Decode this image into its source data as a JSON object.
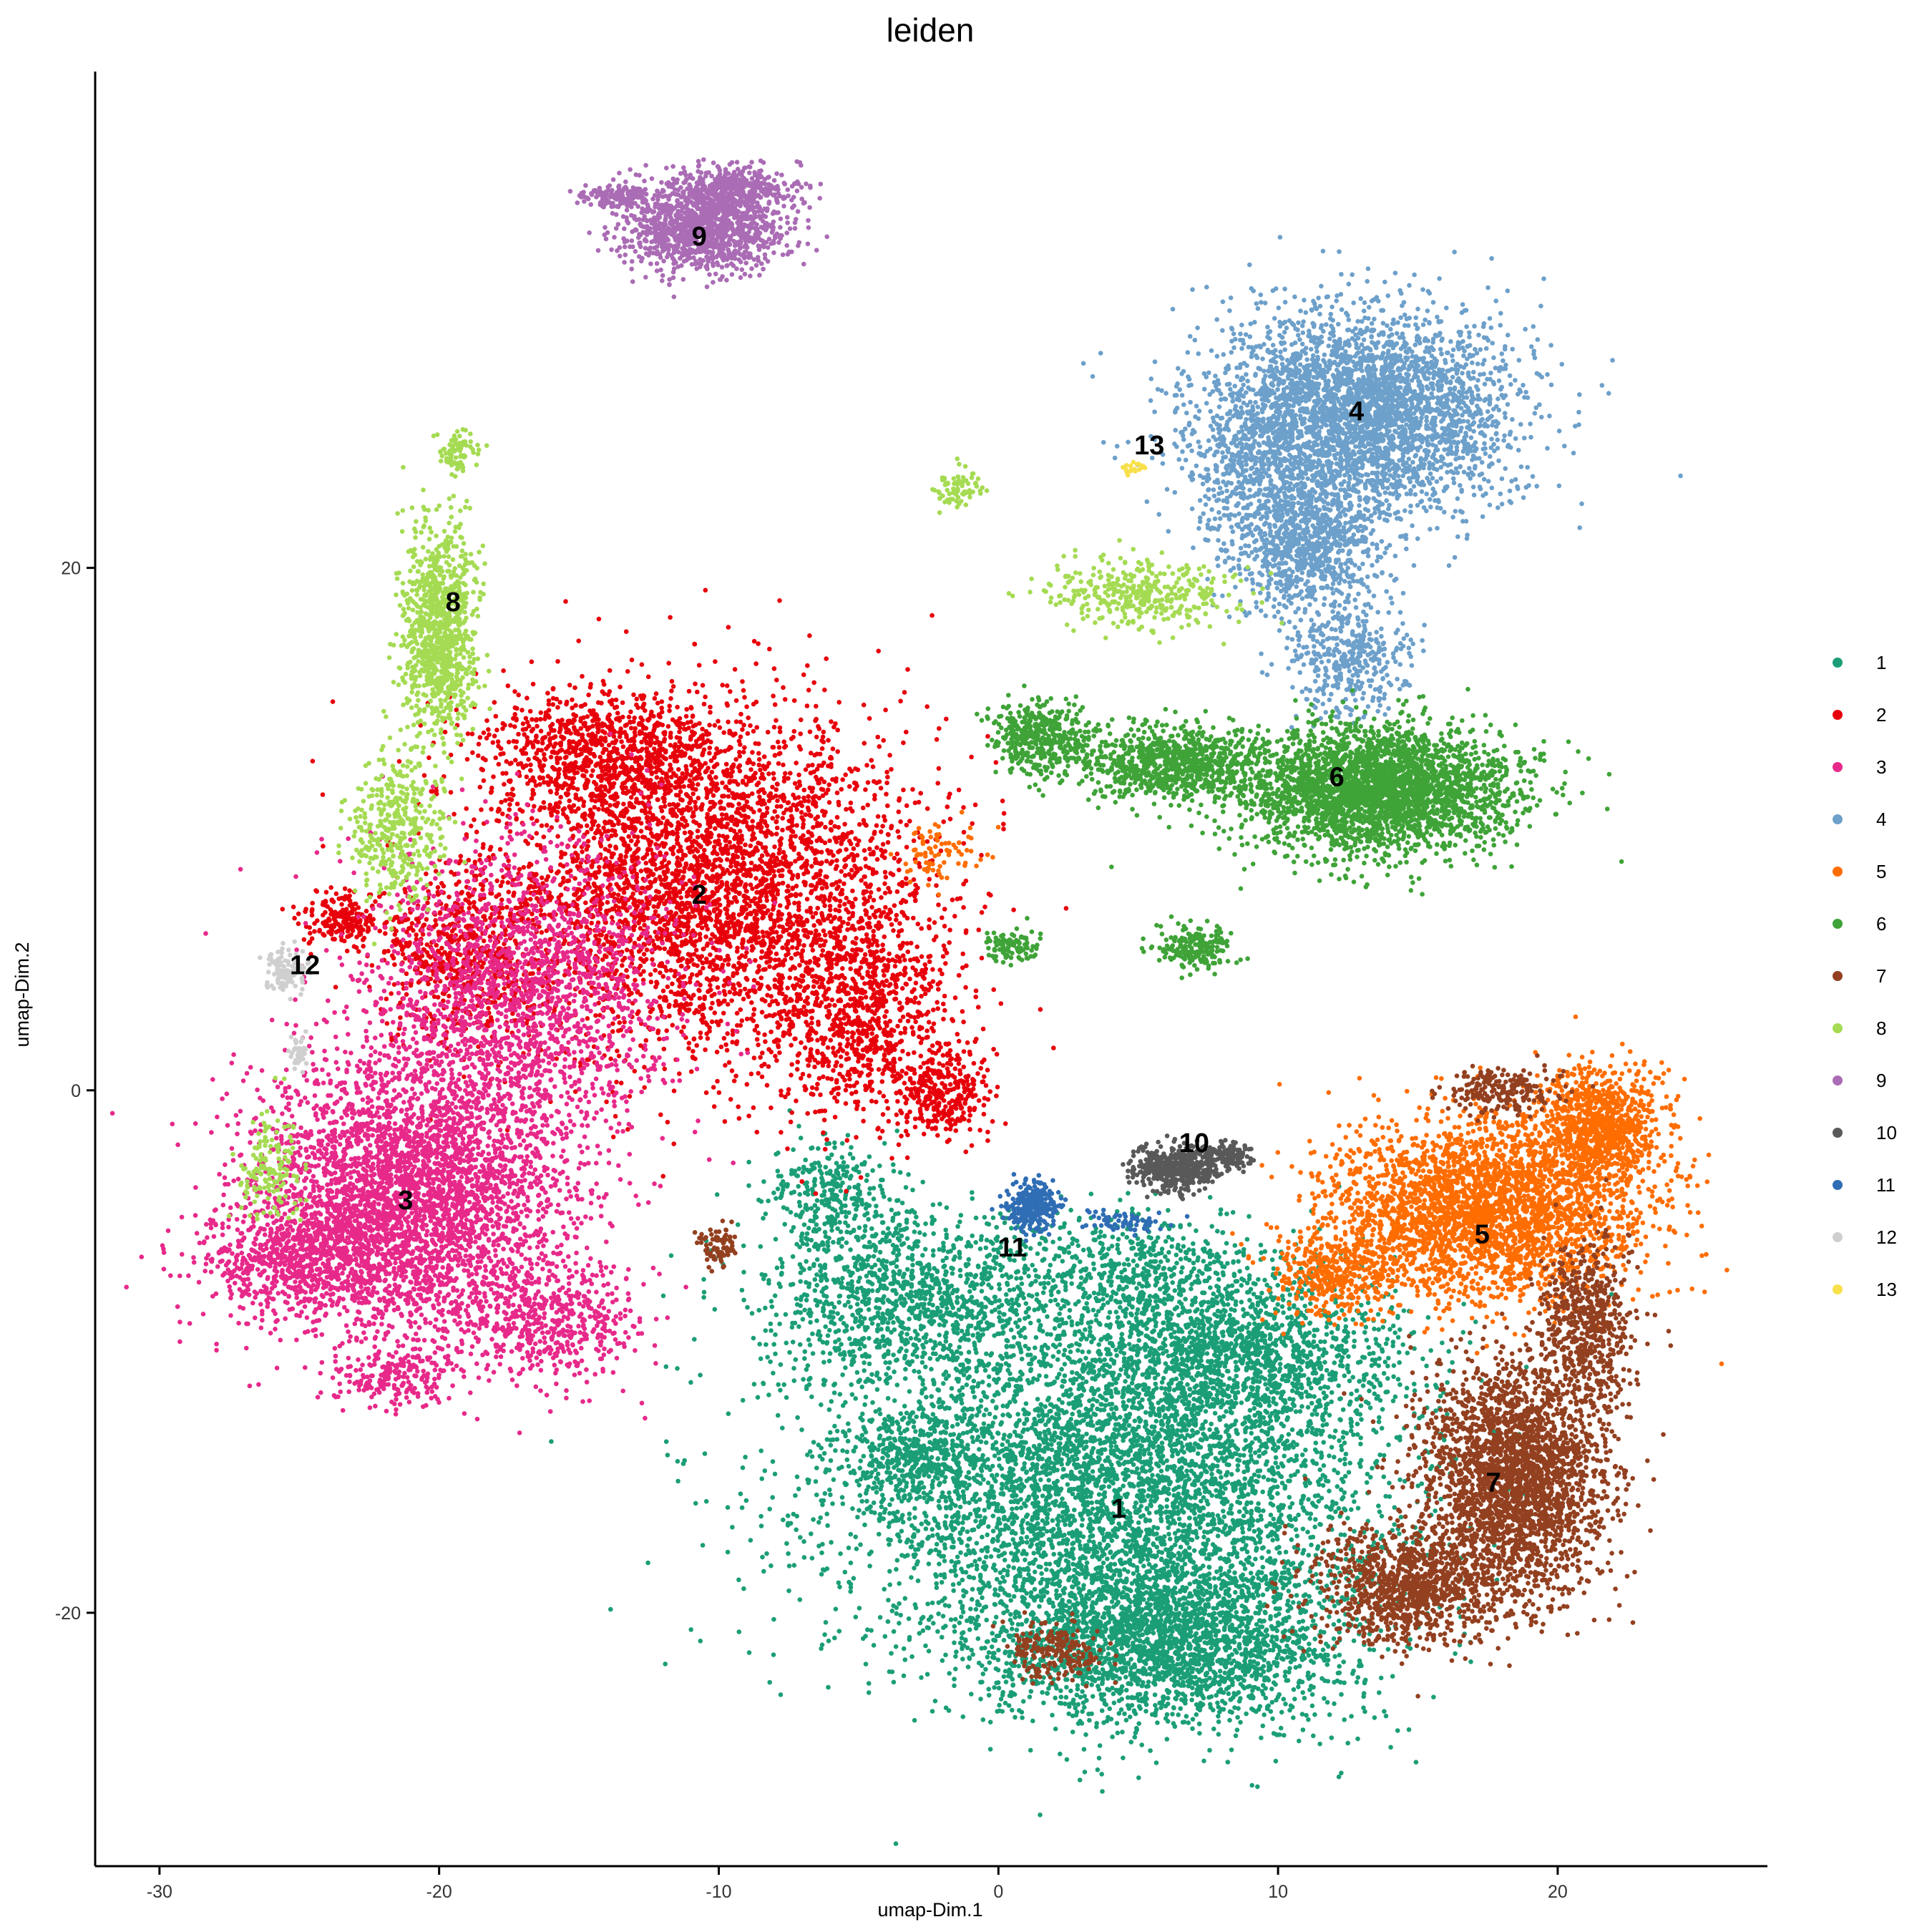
{
  "chart_data": {
    "type": "scatter",
    "title": "leiden",
    "xlabel": "umap-Dim.1",
    "ylabel": "umap-Dim.2",
    "xlim": [
      -32.3,
      27.5
    ],
    "ylim": [
      -29.7,
      39.0
    ],
    "xticks": [
      -30,
      -20,
      -10,
      0,
      10,
      20
    ],
    "yticks": [
      -20,
      0,
      20
    ],
    "grid": false,
    "legend_position": "right",
    "clusters": [
      {
        "name": "1",
        "color": "#1B9E77",
        "label_pos": [
          4.3,
          -16.0
        ],
        "blobs": [
          [
            4,
            -15,
            9,
            6,
            5000
          ],
          [
            6,
            -21,
            6,
            3,
            2500
          ],
          [
            -3,
            -8,
            5,
            3,
            1200
          ],
          [
            9,
            -10,
            5,
            3,
            1300
          ],
          [
            -6,
            -4,
            2,
            2,
            300
          ],
          [
            -3,
            -14,
            2.5,
            1.5,
            300
          ],
          [
            5,
            -7,
            4,
            2,
            500
          ]
        ]
      },
      {
        "name": "2",
        "color": "#E7000B",
        "label_pos": [
          -10.7,
          7.5
        ],
        "blobs": [
          [
            -10.5,
            8,
            7,
            6,
            4000
          ],
          [
            -14,
            13,
            4,
            2,
            800
          ],
          [
            -5,
            3,
            3,
            4,
            900
          ],
          [
            -2,
            0,
            1.5,
            1.5,
            300
          ],
          [
            -23.5,
            6.5,
            1.3,
            1,
            200
          ],
          [
            -19,
            5,
            3,
            3,
            600
          ]
        ]
      },
      {
        "name": "3",
        "color": "#E7298A",
        "label_pos": [
          -21.2,
          -4.2
        ],
        "blobs": [
          [
            -21,
            -4,
            5,
            5,
            3800
          ],
          [
            -17,
            4,
            5,
            5,
            1800
          ],
          [
            -25,
            -6.5,
            3,
            2,
            700
          ],
          [
            -16,
            -9,
            3,
            2,
            500
          ],
          [
            -21.5,
            -11,
            2,
            1,
            200
          ]
        ]
      },
      {
        "name": "4",
        "color": "#6DA0CA",
        "label_pos": [
          12.8,
          26.0
        ],
        "blobs": [
          [
            13,
            26,
            5,
            3.5,
            3500
          ],
          [
            11,
            21,
            2.5,
            2.5,
            1000
          ],
          [
            12.5,
            16.5,
            2,
            2,
            400
          ],
          [
            9,
            24,
            2,
            2,
            300
          ]
        ]
      },
      {
        "name": "5",
        "color": "#FF6D00",
        "label_pos": [
          17.3,
          -5.5
        ],
        "blobs": [
          [
            17.5,
            -4.5,
            5,
            3,
            3000
          ],
          [
            21.5,
            -1.5,
            2,
            2,
            900
          ],
          [
            12,
            -7,
            2,
            1.5,
            400
          ],
          [
            -2,
            9,
            1.5,
            1,
            80
          ]
        ]
      },
      {
        "name": "6",
        "color": "#3FA338",
        "label_pos": [
          12.1,
          12.0
        ],
        "blobs": [
          [
            13.5,
            11.5,
            4.5,
            2.2,
            3000
          ],
          [
            6,
            12.5,
            3,
            1.3,
            900
          ],
          [
            1.5,
            13.5,
            1.5,
            1.2,
            400
          ],
          [
            7,
            5.5,
            1.2,
            0.8,
            200
          ],
          [
            0.5,
            5.5,
            0.8,
            0.6,
            100
          ]
        ]
      },
      {
        "name": "7",
        "color": "#934020",
        "label_pos": [
          17.7,
          -15.0
        ],
        "blobs": [
          [
            18.5,
            -15,
            3,
            4,
            2600
          ],
          [
            14.5,
            -19,
            3,
            2,
            1000
          ],
          [
            21,
            -9,
            1.5,
            3,
            600
          ],
          [
            2,
            -21.5,
            1.5,
            1,
            200
          ],
          [
            -10,
            -6,
            0.6,
            0.8,
            80
          ],
          [
            18,
            0,
            2,
            0.8,
            200
          ]
        ]
      },
      {
        "name": "8",
        "color": "#A5DB53",
        "label_pos": [
          -19.5,
          18.7
        ],
        "blobs": [
          [
            -20,
            17.5,
            1.2,
            3.5,
            1000
          ],
          [
            -21.5,
            10,
            1.5,
            2.5,
            400
          ],
          [
            -19.3,
            24.5,
            0.6,
            0.8,
            80
          ],
          [
            5,
            19,
            3,
            1.2,
            400
          ],
          [
            -1.5,
            23,
            0.7,
            0.6,
            80
          ],
          [
            -26,
            -3,
            1,
            2,
            150
          ]
        ]
      },
      {
        "name": "9",
        "color": "#AA6CB4",
        "label_pos": [
          -10.7,
          32.7
        ],
        "blobs": [
          [
            -10.5,
            33,
            2.5,
            1.5,
            1200
          ],
          [
            -9.5,
            34.5,
            2,
            0.8,
            400
          ],
          [
            -13.5,
            34.2,
            1.2,
            0.5,
            150
          ]
        ]
      },
      {
        "name": "10",
        "color": "#595959",
        "label_pos": [
          7.0,
          -2.0
        ],
        "blobs": [
          [
            6.3,
            -3,
            1.3,
            0.8,
            450
          ],
          [
            8,
            -2.5,
            1.2,
            0.5,
            150
          ]
        ]
      },
      {
        "name": "11",
        "color": "#2F6DB4",
        "label_pos": [
          0.5,
          -6.0
        ],
        "blobs": [
          [
            1.2,
            -4.5,
            0.8,
            0.8,
            300
          ],
          [
            4.5,
            -5,
            1.5,
            0.4,
            60
          ]
        ]
      },
      {
        "name": "12",
        "color": "#CFCFCF",
        "label_pos": [
          -24.8,
          4.8
        ],
        "blobs": [
          [
            -25.5,
            4.5,
            0.6,
            0.8,
            120
          ],
          [
            -25,
            1.5,
            0.4,
            0.6,
            40
          ]
        ]
      },
      {
        "name": "13",
        "color": "#F8E04A",
        "label_pos": [
          5.4,
          24.7
        ],
        "blobs": [
          [
            4.8,
            23.8,
            0.4,
            0.2,
            20
          ]
        ]
      }
    ]
  }
}
